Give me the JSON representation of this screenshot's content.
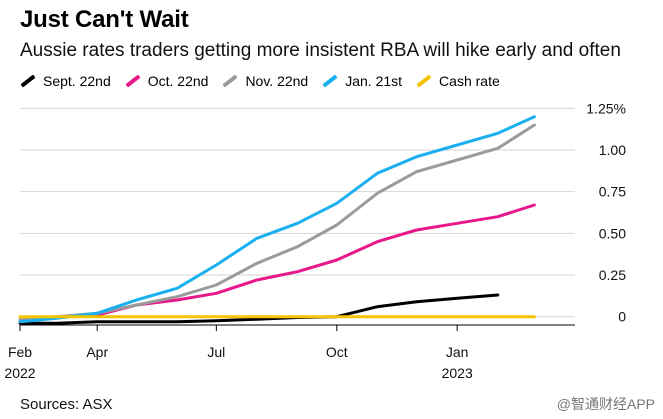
{
  "chart_data": {
    "type": "line",
    "title": "Just Can't Wait",
    "subtitle": "Aussie rates traders getting more insistent RBA will hike early and often",
    "xlabel": "",
    "ylabel": "",
    "x_ticks": [
      {
        "date": "2022-02-01",
        "label": "Feb",
        "label2": "2022"
      },
      {
        "date": "2022-04-01",
        "label": "Apr",
        "label2": ""
      },
      {
        "date": "2022-07-01",
        "label": "Jul",
        "label2": ""
      },
      {
        "date": "2022-10-01",
        "label": "Oct",
        "label2": ""
      },
      {
        "date": "2023-01-01",
        "label": "Jan",
        "label2": "2023"
      }
    ],
    "xlim": [
      "2022-02-01",
      "2023-04-01"
    ],
    "ylim": [
      -0.05,
      1.3
    ],
    "y_ticks": [
      {
        "value": 0,
        "label": "0"
      },
      {
        "value": 0.25,
        "label": "0.25"
      },
      {
        "value": 0.5,
        "label": "0.50"
      },
      {
        "value": 0.75,
        "label": "0.75"
      },
      {
        "value": 1.0,
        "label": "1.00"
      },
      {
        "value": 1.25,
        "label": "1.25%"
      }
    ],
    "y_axis_side": "right",
    "grid": "horizontal",
    "legend_position": "top-left",
    "series": [
      {
        "name": "Sept. 22nd",
        "color": "#000000",
        "x": [
          "2022-02-01",
          "2022-03-01",
          "2022-04-01",
          "2022-05-01",
          "2022-06-01",
          "2022-07-01",
          "2022-08-01",
          "2022-09-01",
          "2022-10-01",
          "2022-11-01",
          "2022-12-01",
          "2023-01-01",
          "2023-02-01"
        ],
        "y": [
          -0.04,
          -0.04,
          -0.03,
          -0.03,
          -0.03,
          -0.025,
          -0.015,
          -0.005,
          0.0,
          0.06,
          0.09,
          0.11,
          0.13
        ]
      },
      {
        "name": "Oct. 22nd",
        "color": "#e8178a",
        "x": [
          "2022-02-01",
          "2022-03-01",
          "2022-04-01",
          "2022-05-01",
          "2022-06-01",
          "2022-07-01",
          "2022-08-01",
          "2022-09-01",
          "2022-10-01",
          "2022-11-01",
          "2022-12-01",
          "2023-01-01",
          "2023-02-01",
          "2023-03-01"
        ],
        "y": [
          -0.02,
          0.0,
          0.01,
          0.07,
          0.1,
          0.14,
          0.22,
          0.27,
          0.34,
          0.45,
          0.52,
          0.56,
          0.6,
          0.67
        ]
      },
      {
        "name": "Nov. 22nd",
        "color": "#9b9b9b",
        "x": [
          "2022-02-01",
          "2022-03-01",
          "2022-04-01",
          "2022-05-01",
          "2022-06-01",
          "2022-07-01",
          "2022-08-01",
          "2022-09-01",
          "2022-10-01",
          "2022-11-01",
          "2022-12-01",
          "2023-01-01",
          "2023-02-01",
          "2023-03-01"
        ],
        "y": [
          -0.02,
          0.0,
          0.02,
          0.07,
          0.12,
          0.19,
          0.32,
          0.42,
          0.55,
          0.74,
          0.87,
          0.94,
          1.01,
          1.15
        ]
      },
      {
        "name": "Jan. 21st",
        "color": "#1ab0f0",
        "x": [
          "2022-02-01",
          "2022-03-01",
          "2022-04-01",
          "2022-05-01",
          "2022-06-01",
          "2022-07-01",
          "2022-08-01",
          "2022-09-01",
          "2022-10-01",
          "2022-11-01",
          "2022-12-01",
          "2023-01-01",
          "2023-02-01",
          "2023-03-01"
        ],
        "y": [
          -0.03,
          -0.01,
          0.02,
          0.1,
          0.17,
          0.31,
          0.47,
          0.56,
          0.68,
          0.86,
          0.96,
          1.03,
          1.1,
          1.2
        ]
      },
      {
        "name": "Cash rate",
        "color": "#f5c400",
        "x": [
          "2022-02-01",
          "2023-03-01"
        ],
        "y": [
          0.0,
          0.0
        ]
      }
    ]
  },
  "source": "Sources: ASX",
  "watermark": "@智通财经APP"
}
